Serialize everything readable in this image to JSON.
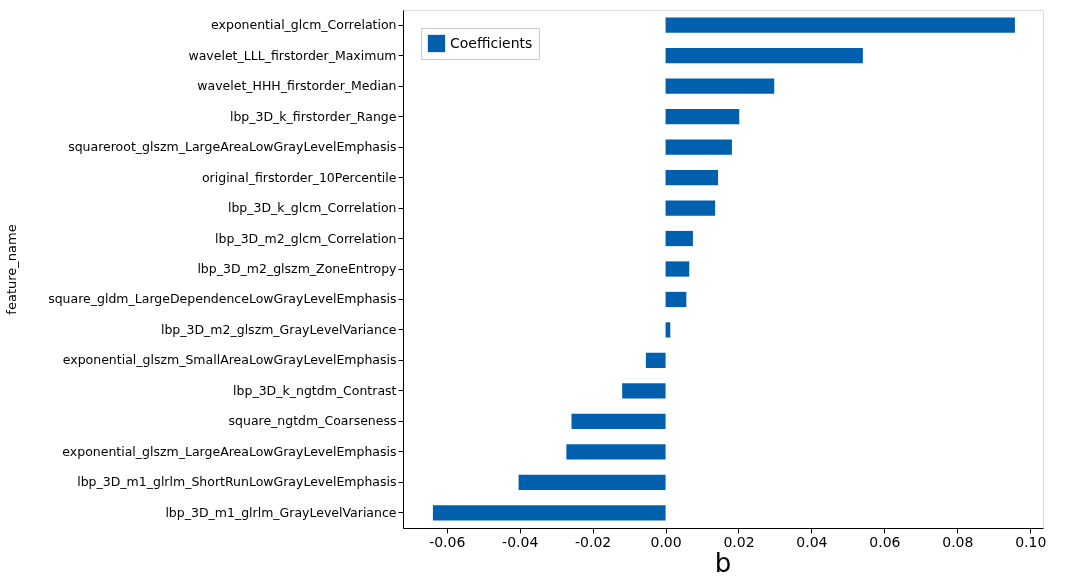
{
  "chart_data": {
    "type": "bar",
    "orientation": "horizontal",
    "ylabel": "feature_name",
    "categories": [
      "exponential_glcm_Correlation",
      "wavelet_LLL_firstorder_Maximum",
      "wavelet_HHH_firstorder_Median",
      "lbp_3D_k_firstorder_Range",
      "squareroot_glszm_LargeAreaLowGrayLevelEmphasis",
      "original_firstorder_10Percentile",
      "lbp_3D_k_glcm_Correlation",
      "lbp_3D_m2_glcm_Correlation",
      "lbp_3D_m2_glszm_ZoneEntropy",
      "square_gldm_LargeDependenceLowGrayLevelEmphasis",
      "lbp_3D_m2_glszm_GrayLevelVariance",
      "exponential_glszm_SmallAreaLowGrayLevelEmphasis",
      "lbp_3D_k_ngtdm_Contrast",
      "square_ngtdm_Coarseness",
      "exponential_glszm_LargeAreaLowGrayLevelEmphasis",
      "lbp_3D_m1_glrlm_ShortRunLowGrayLevelEmphasis",
      "lbp_3D_m1_glrlm_GrayLevelVariance"
    ],
    "series": [
      {
        "name": "Coefficients",
        "color": "#0060ad",
        "values": [
          0.0958,
          0.0541,
          0.0298,
          0.0202,
          0.0182,
          0.0144,
          0.0136,
          0.0075,
          0.0065,
          0.0057,
          0.0013,
          -0.0054,
          -0.0119,
          -0.0258,
          -0.0272,
          -0.0403,
          -0.0638
        ]
      }
    ],
    "xlim": [
      -0.072,
      0.1035
    ],
    "xticks": [
      {
        "value": -0.06,
        "label": "-0.06"
      },
      {
        "value": -0.04,
        "label": "-0.04"
      },
      {
        "value": -0.02,
        "label": "-0.02"
      },
      {
        "value": 0,
        "label": "0.00"
      },
      {
        "value": 0.02,
        "label": "0.02"
      },
      {
        "value": 0.04,
        "label": "0.04"
      },
      {
        "value": 0.06,
        "label": "0.06"
      },
      {
        "value": 0.08,
        "label": "0.08"
      },
      {
        "value": 0.1,
        "label": "0.10"
      }
    ],
    "grid": false,
    "legend": "top left",
    "annotations": [
      "b"
    ]
  }
}
